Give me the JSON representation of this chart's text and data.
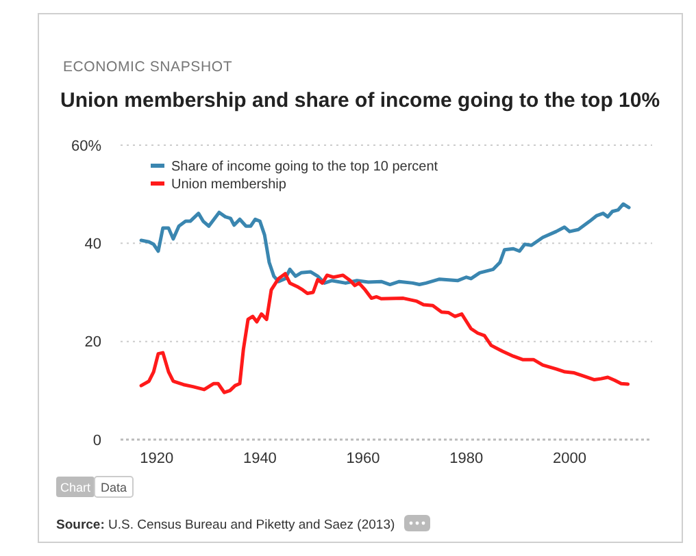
{
  "chart_data": {
    "type": "line",
    "subtitle": "ECONOMIC SNAPSHOT",
    "title": "Union membership and share of income going to the top 10%",
    "xlim": [
      1913,
      2016
    ],
    "xticks": [
      1920,
      1940,
      1960,
      1980,
      2000
    ],
    "ylim": [
      0,
      60
    ],
    "yticks": [
      0,
      20,
      40,
      {
        "value": 60,
        "label": "60%"
      }
    ],
    "grid": "y",
    "legend": "top left",
    "line_style": "solid",
    "marker": "none",
    "series": [
      {
        "name": "Share of income going to the top 10 percent",
        "color": "#3a86b0",
        "x": [
          1917,
          1918.5,
          1919.4,
          1920.3,
          1921.2,
          1922.3,
          1923.2,
          1924.3,
          1925.6,
          1926.5,
          1928.1,
          1929,
          1930.1,
          1932.1,
          1933.3,
          1934.3,
          1935,
          1936.1,
          1937.3,
          1938.2,
          1939.1,
          1940,
          1940.9,
          1941.8,
          1942.7,
          1943.6,
          1944.9,
          1945.8,
          1946.9,
          1948,
          1949.8,
          1951.2,
          1952.5,
          1953.9,
          1956.6,
          1958.8,
          1961,
          1963.5,
          1965.2,
          1967,
          1969.6,
          1970.9,
          1972.2,
          1974.8,
          1978.3,
          1980,
          1980.9,
          1982.6,
          1985.2,
          1986.5,
          1987.4,
          1989.1,
          1990.3,
          1991.3,
          1992.6,
          1994.8,
          1997.4,
          1999,
          2000,
          2001.7,
          2003.9,
          2005.2,
          2006.5,
          2007.4,
          2008.3,
          2009.4,
          2010.4,
          2011.5
        ],
        "values": [
          40.6,
          40.3,
          39.8,
          38.4,
          43.1,
          43.1,
          40.9,
          43.5,
          44.5,
          44.5,
          46.1,
          44.5,
          43.5,
          46.3,
          45.4,
          45.1,
          43.7,
          44.9,
          43.5,
          43.5,
          44.9,
          44.5,
          41.7,
          36.1,
          33.3,
          32.2,
          32.8,
          34.7,
          33.3,
          34,
          34.2,
          33.3,
          31.9,
          32.4,
          31.9,
          32.4,
          32.1,
          32.2,
          31.6,
          32.2,
          31.9,
          31.6,
          31.9,
          32.7,
          32.4,
          33.1,
          32.8,
          34,
          34.7,
          36.1,
          38.7,
          38.9,
          38.4,
          39.8,
          39.6,
          41.2,
          42.4,
          43.3,
          42.4,
          42.8,
          44.5,
          45.6,
          46.1,
          45.4,
          46.5,
          46.8,
          48,
          47.3
        ]
      },
      {
        "name": "Union membership",
        "color": "#ff1a1a",
        "x": [
          1917,
          1918.5,
          1919.4,
          1920.3,
          1921.2,
          1922.3,
          1923.2,
          1925.2,
          1927,
          1929.2,
          1931,
          1931.9,
          1933.1,
          1934.2,
          1935.2,
          1936.1,
          1936.8,
          1937.7,
          1938.6,
          1939.4,
          1940.3,
          1941.3,
          1942.2,
          1943.6,
          1944.9,
          1945.8,
          1947.2,
          1948.3,
          1949.2,
          1950.3,
          1951.2,
          1952.1,
          1953,
          1954.3,
          1956.1,
          1957.5,
          1958.4,
          1959.2,
          1960.4,
          1961.6,
          1962.6,
          1963.5,
          1967.8,
          1970.4,
          1971.7,
          1973.5,
          1975.2,
          1976.5,
          1977.8,
          1979.1,
          1980.9,
          1982.2,
          1983.5,
          1984.8,
          1987,
          1989.1,
          1990.9,
          1993,
          1994.8,
          1997.4,
          1999.1,
          2000.9,
          2002.6,
          2004.8,
          2006.1,
          2007.4,
          2008.7,
          2010,
          2011.3
        ],
        "values": [
          11,
          11.9,
          13.8,
          17.5,
          17.7,
          13.8,
          11.9,
          11.2,
          10.8,
          10.2,
          11.4,
          11.4,
          9.6,
          10,
          11,
          11.4,
          18.4,
          24.5,
          25.1,
          24,
          25.6,
          24.5,
          30.5,
          32.8,
          33.8,
          31.9,
          31.2,
          30.5,
          29.8,
          30,
          32.6,
          31.9,
          33.5,
          33.1,
          33.5,
          32.4,
          31.4,
          31.9,
          30.5,
          28.8,
          29.1,
          28.7,
          28.8,
          28.2,
          27.5,
          27.3,
          26,
          25.9,
          25.1,
          25.6,
          22.6,
          21.7,
          21.2,
          19.2,
          18,
          17,
          16.3,
          16.3,
          15.2,
          14.4,
          13.8,
          13.6,
          13,
          12.2,
          12.4,
          12.7,
          12.1,
          11.4,
          11.3
        ]
      }
    ],
    "annotations": [
      "Chart",
      "Data",
      "Source: U.S. Census Bureau and Piketty and Saez (2013)"
    ]
  }
}
